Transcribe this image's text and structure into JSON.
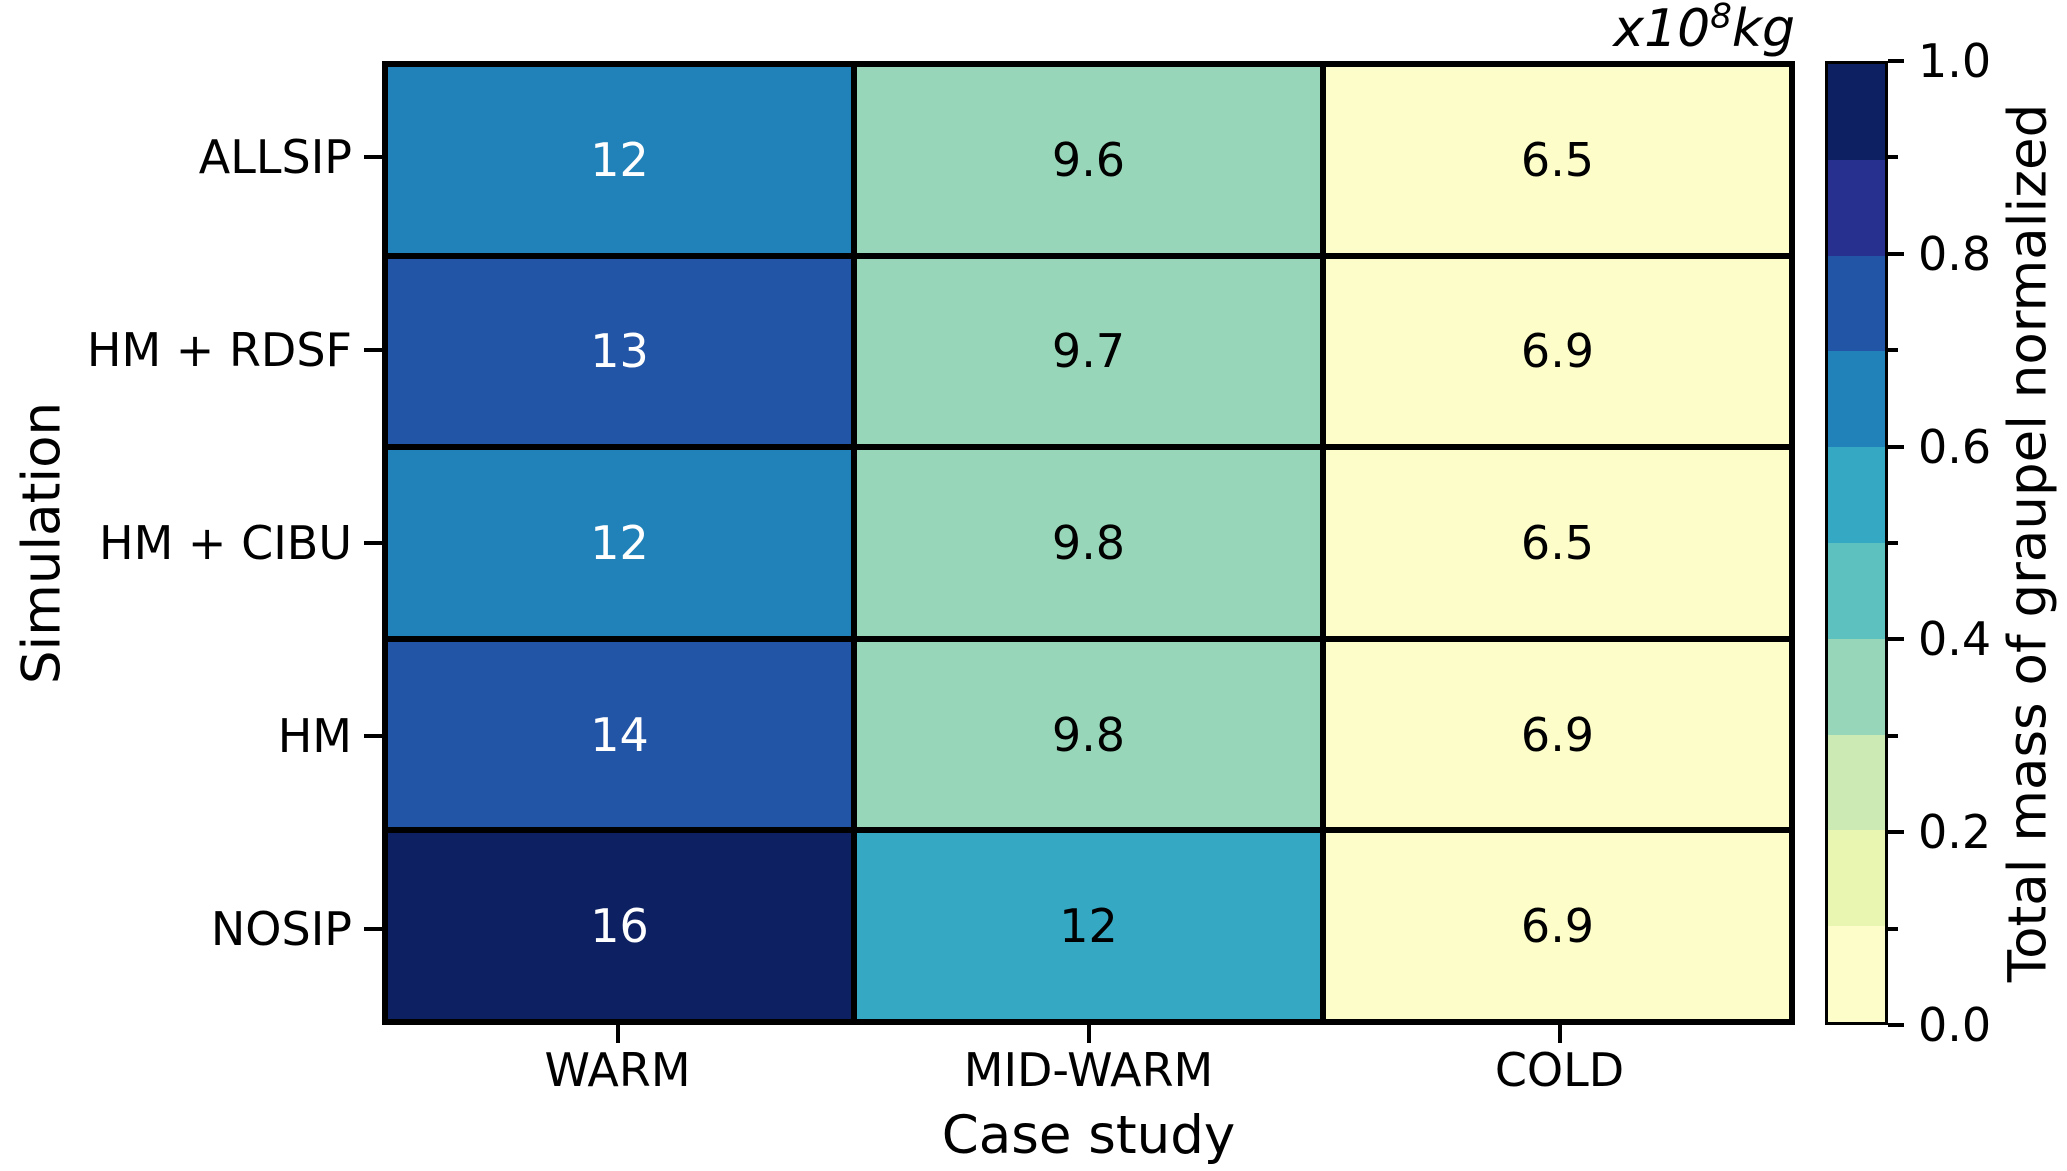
{
  "title_unit": {
    "text": "x10⁸kg",
    "variable": "x",
    "base": "10",
    "exponent": "8",
    "suffix": "kg"
  },
  "chart_data": {
    "type": "heatmap",
    "xlabel": "Case study",
    "ylabel": "Simulation",
    "x_categories": [
      "WARM",
      "MID-WARM",
      "COLD"
    ],
    "y_categories": [
      "ALLSIP",
      "HM + RDSF",
      "HM + CIBU",
      "HM",
      "NOSIP"
    ],
    "values_x1e8_kg": [
      [
        12,
        9.6,
        6.5
      ],
      [
        13,
        9.7,
        6.9
      ],
      [
        12,
        9.8,
        6.5
      ],
      [
        14,
        9.8,
        6.9
      ],
      [
        16,
        12,
        6.9
      ]
    ],
    "value_labels": [
      [
        "12",
        "9.6",
        "6.5"
      ],
      [
        "13",
        "9.7",
        "6.9"
      ],
      [
        "12",
        "9.8",
        "6.5"
      ],
      [
        "14",
        "9.8",
        "6.9"
      ],
      [
        "16",
        "12",
        "6.9"
      ]
    ],
    "cell_colors": [
      [
        "#2182b9",
        "#97d6b9",
        "#fcfdc9"
      ],
      [
        "#2355a7",
        "#97d6b9",
        "#fcfdc9"
      ],
      [
        "#2182b9",
        "#97d6b9",
        "#fcfdc9"
      ],
      [
        "#2355a7",
        "#97d6b9",
        "#fcfdc9"
      ],
      [
        "#0d2061",
        "#35a9c3",
        "#fcfdc9"
      ]
    ],
    "cell_text_colors": [
      [
        "#ffffff",
        "#000000",
        "#000000"
      ],
      [
        "#ffffff",
        "#000000",
        "#000000"
      ],
      [
        "#ffffff",
        "#000000",
        "#000000"
      ],
      [
        "#ffffff",
        "#000000",
        "#000000"
      ],
      [
        "#ffffff",
        "#000000",
        "#000000"
      ]
    ],
    "grid_line_color": "#000000",
    "legend_position": "right",
    "grid": "off",
    "colorbar": {
      "label": "Total mass of graupel normalized",
      "min": 0.0,
      "max": 1.0,
      "major_tick_labels": [
        "0.0",
        "0.2",
        "0.4",
        "0.6",
        "0.8",
        "1.0"
      ],
      "minor_tick_values": [
        0.1,
        0.3,
        0.5,
        0.7,
        0.9
      ],
      "segment_colors_low_to_high": [
        "#fcfdc9",
        "#e9f6b2",
        "#cbeab4",
        "#97d6b9",
        "#5dc1c0",
        "#35a9c3",
        "#2182b9",
        "#2355a7",
        "#28308f",
        "#0d2061"
      ]
    }
  }
}
